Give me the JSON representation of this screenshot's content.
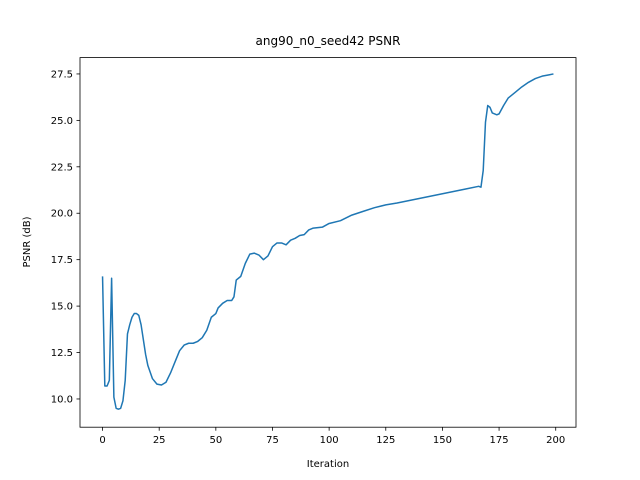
{
  "chart_data": {
    "type": "line",
    "title": "ang90_n0_seed42 PSNR",
    "x_label": "Iteration",
    "y_label": "PSNR (dB)",
    "xlim": [
      -9.95,
      208.95
    ],
    "ylim": [
      8.48,
      28.38
    ],
    "xticks": [
      0,
      25,
      50,
      75,
      100,
      125,
      150,
      175,
      200
    ],
    "yticks": [
      {
        "value": 10,
        "label": "10.0"
      },
      12.5,
      {
        "value": 15,
        "label": "15.0"
      },
      17.5,
      {
        "value": 20,
        "label": "20.0"
      },
      22.5,
      {
        "value": 25,
        "label": "25.0"
      },
      27.5
    ],
    "x": [
      0,
      1,
      2,
      3,
      4,
      5,
      6,
      7,
      8,
      9,
      10,
      11,
      12,
      13,
      14,
      15,
      16,
      17,
      18,
      19,
      20,
      22,
      24,
      26,
      28,
      30,
      32,
      34,
      36,
      38,
      40,
      42,
      44,
      46,
      48,
      50,
      51,
      53,
      55,
      57,
      58,
      59,
      61,
      63,
      65,
      67,
      69,
      71,
      73,
      75,
      77,
      79,
      81,
      83,
      85,
      87,
      89,
      91,
      93,
      97,
      100,
      105,
      110,
      115,
      120,
      125,
      130,
      140,
      150,
      160,
      166,
      167,
      168,
      169,
      170,
      171,
      172,
      174,
      175,
      177,
      179,
      182,
      185,
      188,
      191,
      194,
      197,
      199
    ],
    "series": [
      {
        "color": "#1f77b4",
        "values": [
          16.6,
          10.7,
          10.7,
          11.0,
          16.5,
          10.1,
          9.5,
          9.45,
          9.5,
          9.9,
          11.0,
          13.5,
          14.0,
          14.4,
          14.6,
          14.6,
          14.5,
          14.0,
          13.2,
          12.4,
          11.8,
          11.1,
          10.8,
          10.75,
          10.9,
          11.4,
          12.0,
          12.6,
          12.9,
          13.0,
          13.0,
          13.1,
          13.3,
          13.7,
          14.4,
          14.6,
          14.9,
          15.15,
          15.3,
          15.3,
          15.5,
          16.4,
          16.6,
          17.3,
          17.8,
          17.85,
          17.75,
          17.5,
          17.7,
          18.2,
          18.4,
          18.4,
          18.3,
          18.55,
          18.65,
          18.8,
          18.85,
          19.1,
          19.2,
          19.25,
          19.45,
          19.6,
          19.9,
          20.1,
          20.3,
          20.45,
          20.55,
          20.8,
          21.05,
          21.3,
          21.45,
          21.4,
          22.3,
          24.9,
          25.8,
          25.7,
          25.4,
          25.3,
          25.35,
          25.8,
          26.2,
          26.5,
          26.8,
          27.05,
          27.25,
          27.38,
          27.45,
          27.5
        ]
      }
    ]
  }
}
